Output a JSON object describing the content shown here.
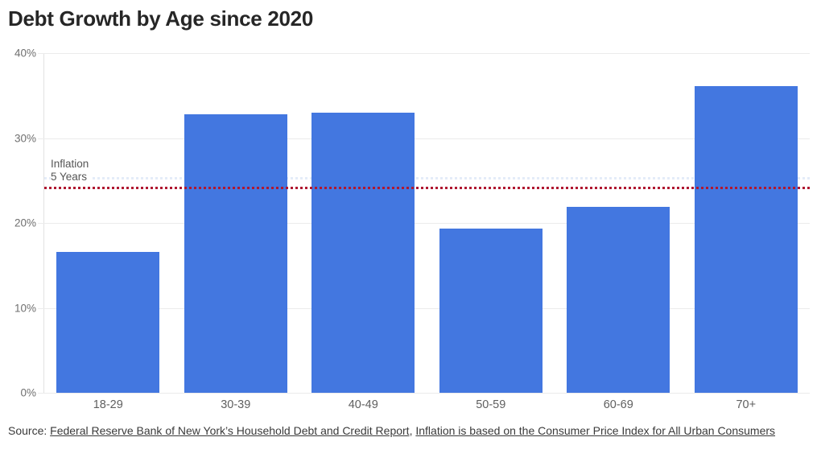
{
  "title": "Debt Growth by Age since 2020",
  "colors": {
    "bar": "#4377e0",
    "inflation_line": "#b01730",
    "secondary_line": "#dfe9f7",
    "grid": "#ebebeb",
    "axis": "#e2e2e2"
  },
  "chart_data": {
    "type": "bar",
    "categories": [
      "18-29",
      "30-39",
      "40-49",
      "50-59",
      "60-69",
      "70+"
    ],
    "values": [
      16.6,
      32.8,
      33.0,
      19.3,
      21.9,
      36.1
    ],
    "title": "Debt Growth by Age since 2020",
    "xlabel": "",
    "ylabel": "",
    "ylim": [
      0,
      40
    ],
    "yticks": [
      0,
      10,
      20,
      30,
      40
    ],
    "ytick_labels": [
      "0%",
      "10%",
      "20%",
      "30%",
      "40%"
    ],
    "grid": true,
    "legend": false,
    "reference_lines": [
      {
        "name": "inflation-5-years",
        "label": "Inflation 5 Years",
        "value": 24.1,
        "style": "dotted",
        "color": "#b01730"
      },
      {
        "name": "secondary-faint",
        "label": "",
        "value": 25.3,
        "style": "dotted",
        "color": "#dfe9f7"
      }
    ]
  },
  "annotation": {
    "line1": "Inflation",
    "line2": "5 Years"
  },
  "footer": {
    "prefix": "Source: ",
    "link1": "Federal Reserve Bank of New York’s Household Debt and Credit Report",
    "separator": ", ",
    "link2": "Inflation is based on the Consumer Price Index for All Urban Consumers"
  }
}
